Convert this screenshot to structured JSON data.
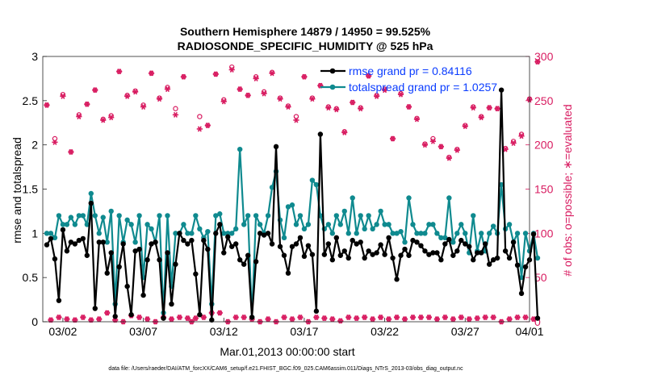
{
  "chart_data": {
    "type": "line",
    "title_line1": "Southern Hemisphere 14879 / 14950 = 99.525%",
    "title_line2": "RADIOSONDE_SPECIFIC_HUMIDITY @ 525 hPa",
    "xlabel": "Mar.01,2013 00:00:00 start",
    "ylabel_left": "rmse and totalspread",
    "ylabel_right": "# of obs: o=possible; ∗=evaluated",
    "footer": "data file: /Users/raeder/DAI/ATM_forcXX/CAM6_setup/f.e21.FHIST_BGC.f09_025.CAM6assim.011/Diags_NTrS_2013-03/obs_diag_output.nc",
    "xlim": [
      0.75,
      31.0
    ],
    "ylim_left": [
      0,
      3
    ],
    "ylim_right": [
      0,
      300
    ],
    "x_ticks": [
      {
        "x": 2,
        "label": "03/02"
      },
      {
        "x": 7,
        "label": "03/07"
      },
      {
        "x": 12,
        "label": "03/12"
      },
      {
        "x": 17,
        "label": "03/17"
      },
      {
        "x": 22,
        "label": "03/22"
      },
      {
        "x": 27,
        "label": "03/27"
      },
      {
        "x": 31,
        "label": "04/01"
      }
    ],
    "y_left_ticks": [
      "0",
      "0.5",
      "1",
      "1.5",
      "2",
      "2.5",
      "3"
    ],
    "y_right_ticks": [
      "0",
      "50",
      "100",
      "150",
      "200",
      "250",
      "300"
    ],
    "colors": {
      "rmse": "#000000",
      "spread": "#0f8a8f",
      "obs": "#d81b60",
      "legend_text": "#0a3cff"
    },
    "series": [
      {
        "name": "rmse grand pr = 0.84116",
        "axis": "left",
        "values": [
          0.87,
          0.94,
          0.71,
          0.24,
          1.04,
          0.8,
          0.9,
          0.88,
          0.92,
          0.94,
          0.75,
          1.34,
          0.15,
          0.9,
          0.9,
          0.55,
          0.78,
          0.06,
          0.62,
          0.88,
          0.4,
          0.08,
          0.8,
          0.82,
          0.3,
          0.7,
          0.88,
          0.9,
          0.7,
          0.04,
          0.78,
          0.2,
          0.65,
          1.0,
          0.92,
          0.88,
          0.92,
          0.54,
          0.08,
          0.92,
          0.82,
          0.02,
          1.0,
          1.1,
          0.78,
          0.96,
          0.85,
          0.88,
          0.7,
          0.65,
          0.75,
          0.05,
          0.68,
          1.0,
          0.98,
          1.0,
          0.88,
          1.98,
          0.85,
          0.75,
          0.55,
          0.85,
          0.88,
          0.95,
          0.74,
          0.86,
          0.76,
          0.12,
          2.12,
          0.76,
          0.88,
          0.7,
          0.95,
          0.75,
          0.8,
          0.72,
          0.92,
          0.88,
          0.9,
          0.72,
          0.8,
          0.76,
          0.78,
          0.87,
          0.76,
          0.95,
          0.72,
          0.48,
          0.75,
          0.82,
          0.75,
          0.92,
          0.9,
          0.86,
          0.8,
          0.76,
          0.78,
          0.78,
          0.7,
          0.88,
          0.93,
          0.75,
          0.8,
          0.92,
          0.88,
          0.85,
          0.7,
          0.78,
          0.78,
          0.88,
          0.65,
          0.7,
          0.72,
          2.62,
          0.8,
          0.72,
          0.9,
          0.64,
          0.32,
          0.62,
          0.7,
          0.99,
          0.04
        ]
      },
      {
        "name": "totalspread grand pr = 1.0257",
        "axis": "left",
        "values": [
          1.0,
          1.0,
          0.95,
          1.2,
          1.1,
          1.1,
          1.18,
          1.1,
          1.2,
          1.2,
          1.1,
          1.45,
          1.2,
          1.0,
          1.18,
          0.9,
          1.25,
          0.2,
          1.2,
          0.9,
          1.15,
          1.1,
          0.9,
          1.2,
          0.5,
          1.1,
          1.05,
          0.9,
          1.2,
          0.1,
          1.2,
          0.4,
          1.0,
          1.0,
          1.1,
          1.0,
          1.0,
          1.2,
          1.05,
          0.95,
          1.02,
          0.2,
          1.2,
          1.22,
          1.0,
          1.0,
          1.0,
          1.05,
          1.95,
          1.1,
          1.2,
          0.05,
          1.2,
          1.1,
          1.0,
          1.2,
          1.52,
          1.7,
          1.15,
          0.95,
          1.3,
          1.32,
          1.1,
          1.2,
          1.05,
          1.1,
          1.6,
          1.55,
          1.2,
          1.05,
          1.1,
          1.0,
          1.2,
          1.1,
          1.25,
          1.0,
          1.4,
          1.0,
          1.2,
          1.05,
          1.2,
          1.05,
          1.1,
          1.25,
          1.1,
          1.1,
          1.0,
          1.0,
          1.02,
          0.9,
          1.4,
          1.1,
          1.0,
          1.0,
          1.0,
          1.1,
          1.1,
          1.0,
          0.95,
          0.95,
          1.4,
          0.9,
          1.0,
          1.1,
          1.0,
          0.78,
          1.2,
          0.8,
          1.0,
          0.8,
          1.0,
          1.08,
          1.0,
          1.55,
          1.05,
          1.1,
          0.9,
          1.0,
          0.5,
          1.0,
          0.8,
          1.0,
          0.72
        ]
      }
    ],
    "obs_possible": [
      245,
      2,
      207,
      5,
      257,
      3,
      192,
      2,
      234,
      5,
      246,
      2,
      262,
      3,
      229,
      10,
      233,
      2,
      283,
      0,
      256,
      7,
      261,
      5,
      245,
      3,
      281,
      0,
      253,
      5,
      265,
      3,
      241,
      5,
      277,
      4,
      0,
      4,
      232,
      5,
      222,
      10,
      280,
      10,
      251,
      0,
      288,
      5,
      263,
      5,
      256,
      3,
      277,
      0,
      260,
      3,
      282,
      0,
      253,
      5,
      244,
      3,
      232,
      5,
      277,
      0,
      253,
      5,
      267,
      4,
      243,
      3,
      241,
      1,
      215,
      5,
      248,
      4,
      242,
      5,
      278,
      3,
      256,
      5,
      263,
      3,
      207,
      5,
      258,
      3,
      243,
      5,
      230,
      5,
      201,
      5,
      207,
      3,
      198,
      5,
      186,
      3,
      195,
      5,
      222,
      3,
      243,
      4,
      232,
      5,
      242,
      5,
      241,
      0,
      196,
      3,
      204,
      5,
      212,
      5,
      252,
      3,
      294
    ],
    "obs_evaluated": [
      245,
      2,
      203,
      5,
      255,
      3,
      192,
      2,
      232,
      5,
      246,
      2,
      262,
      3,
      228,
      10,
      231,
      2,
      283,
      0,
      255,
      7,
      260,
      5,
      243,
      3,
      281,
      0,
      252,
      5,
      263,
      3,
      234,
      5,
      277,
      4,
      0,
      4,
      218,
      5,
      222,
      10,
      280,
      10,
      249,
      0,
      285,
      5,
      263,
      5,
      256,
      3,
      275,
      0,
      258,
      3,
      281,
      0,
      252,
      5,
      243,
      3,
      228,
      5,
      277,
      0,
      252,
      5,
      267,
      4,
      242,
      3,
      240,
      1,
      214,
      5,
      248,
      4,
      241,
      5,
      278,
      3,
      255,
      5,
      262,
      3,
      207,
      5,
      257,
      3,
      243,
      5,
      229,
      5,
      200,
      5,
      204,
      3,
      198,
      5,
      185,
      3,
      194,
      5,
      221,
      3,
      242,
      4,
      231,
      5,
      242,
      5,
      241,
      0,
      195,
      3,
      202,
      5,
      210,
      5,
      251,
      3,
      294
    ]
  }
}
